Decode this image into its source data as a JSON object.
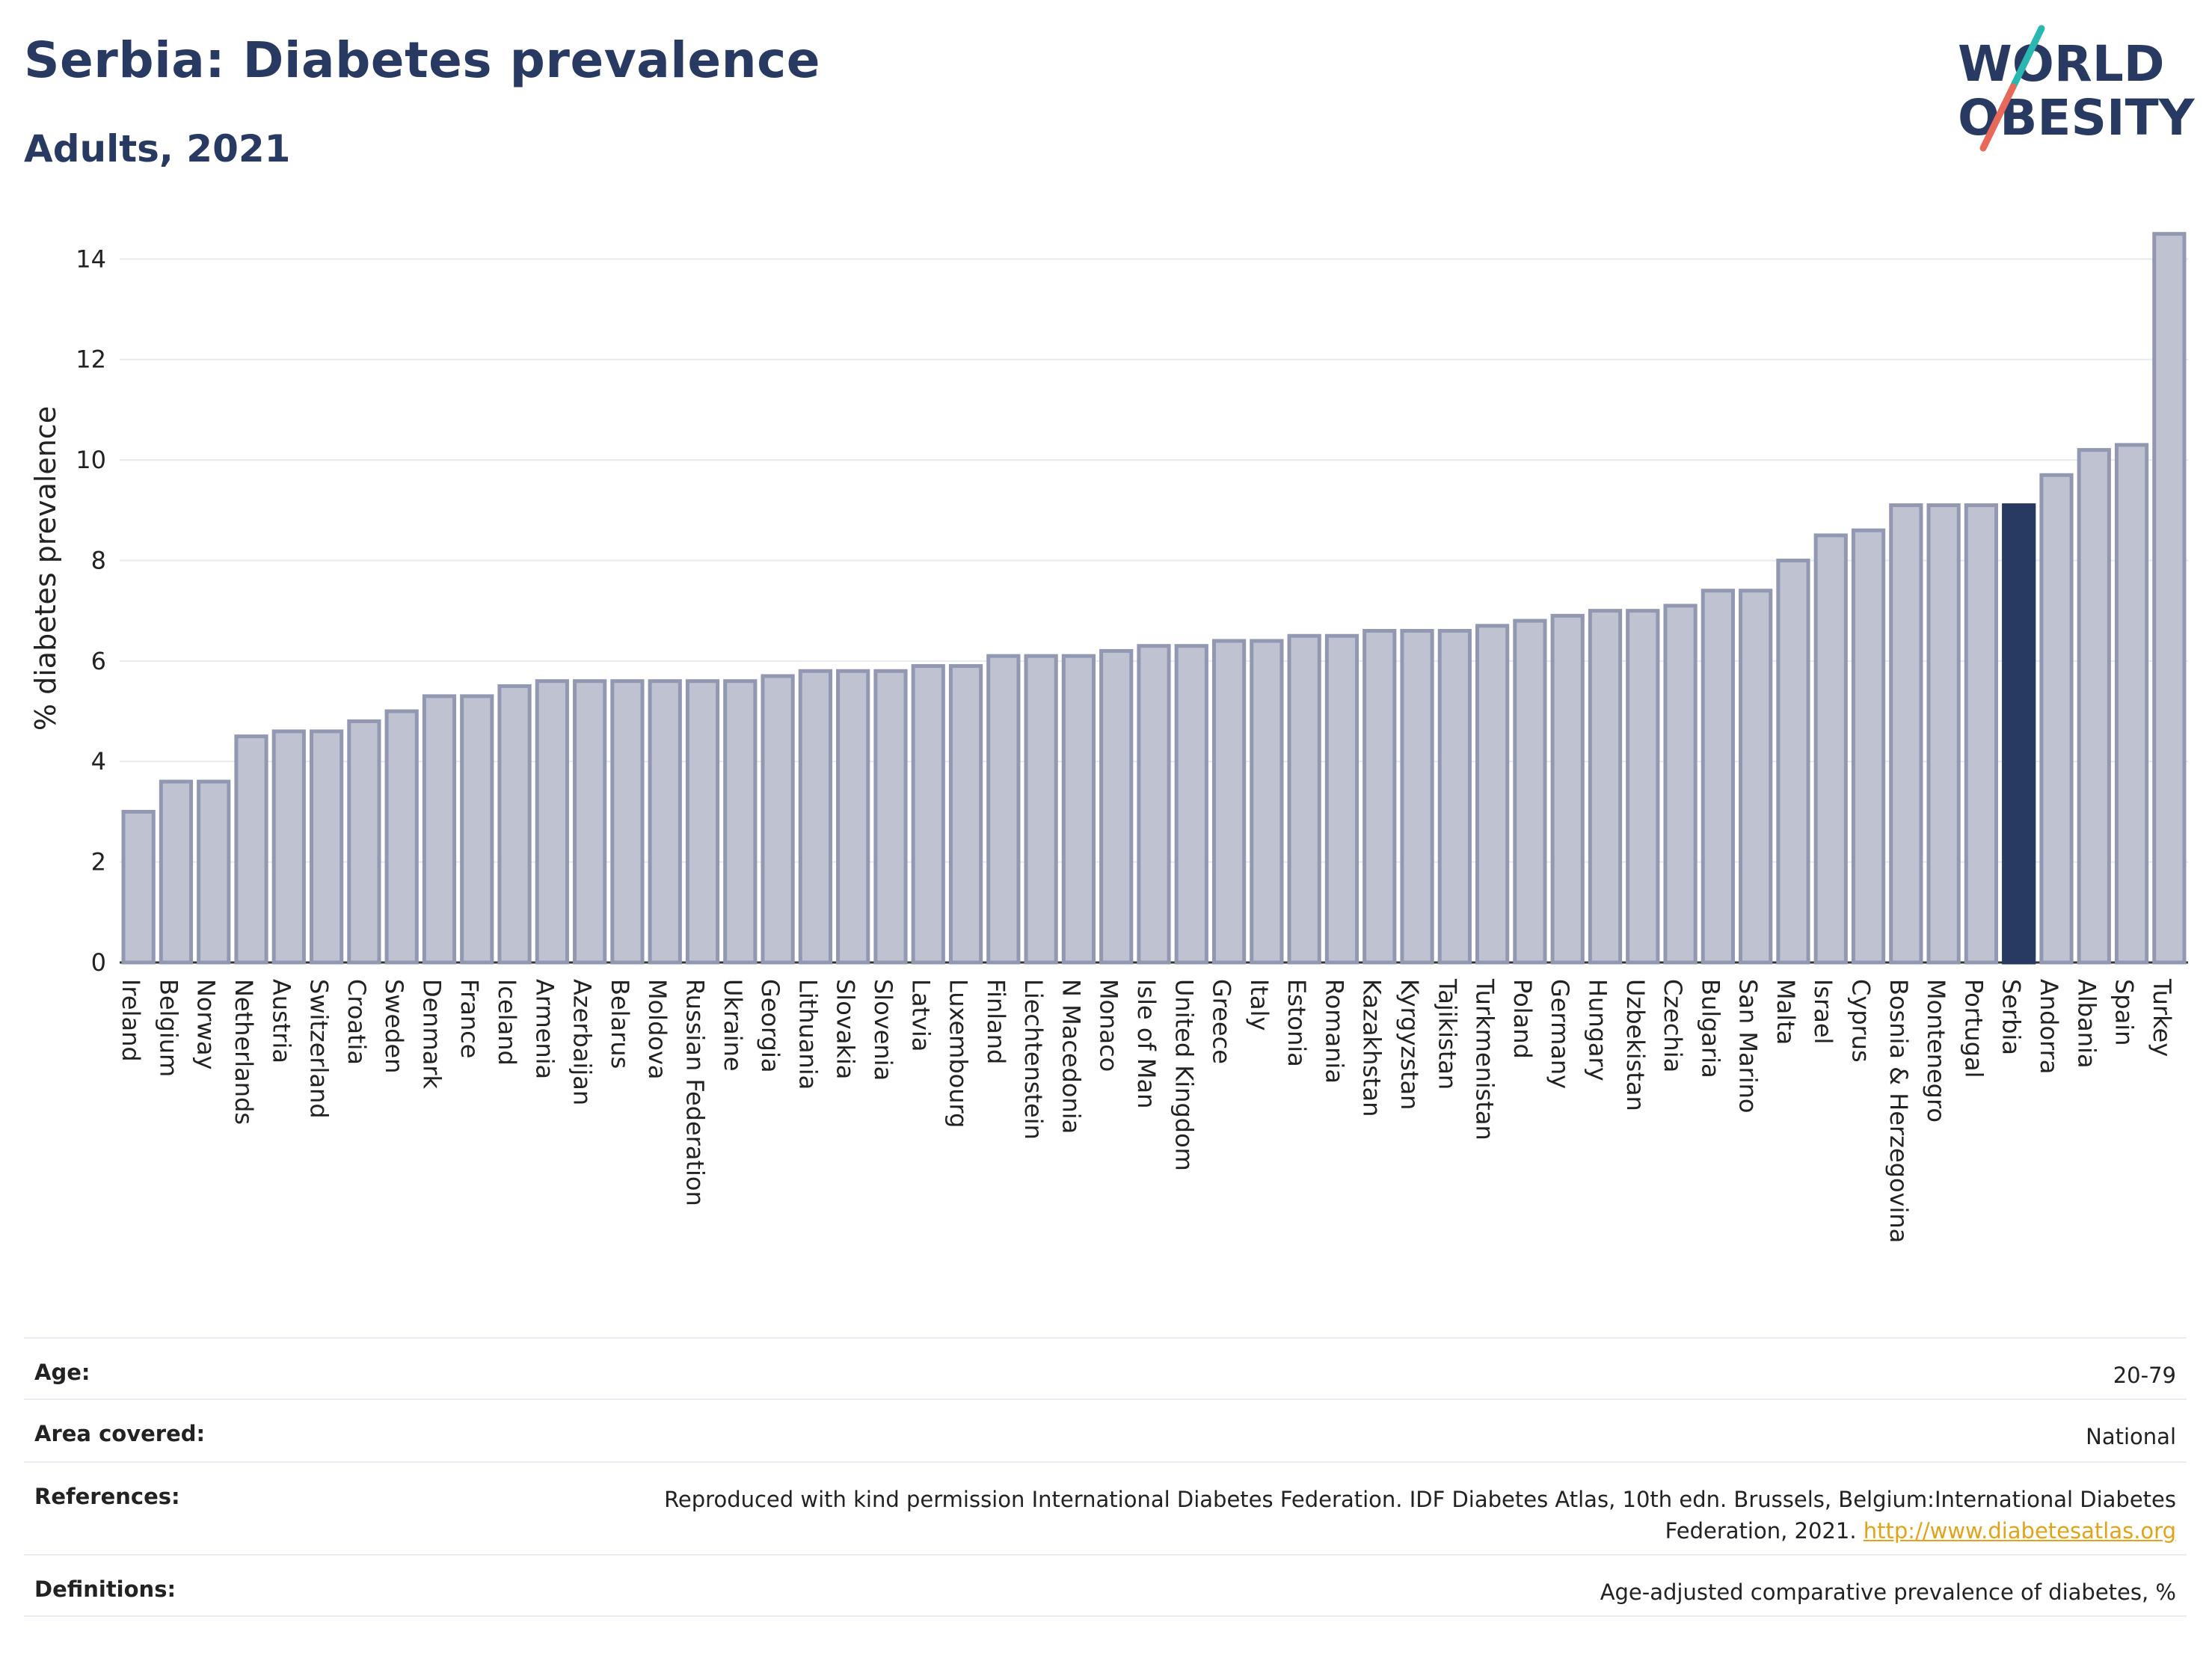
{
  "header": {
    "title": "Serbia: Diabetes prevalence",
    "subtitle": "Adults, 2021"
  },
  "logo": {
    "line1": "WORLD",
    "line2": "OBESITY",
    "accent_colors": [
      "#2bb7b1",
      "#e8685a"
    ],
    "text_color": "#283a62"
  },
  "colors": {
    "bar_default": "#bfc3d1",
    "bar_border": "#9298b1",
    "bar_highlight": "#283a62",
    "grid": "#e8eaf0",
    "axis": "#333333"
  },
  "chart_data": {
    "type": "bar",
    "title": "Serbia: Diabetes prevalence",
    "subtitle": "Adults, 2021",
    "xlabel": "",
    "ylabel": "% diabetes prevalence",
    "ylim": [
      0,
      14.6
    ],
    "yticks": [
      0,
      2,
      4,
      6,
      8,
      10,
      12,
      14
    ],
    "grid": true,
    "highlight": "Serbia",
    "categories": [
      "Ireland",
      "Belgium",
      "Norway",
      "Netherlands",
      "Austria",
      "Switzerland",
      "Croatia",
      "Sweden",
      "Denmark",
      "France",
      "Iceland",
      "Armenia",
      "Azerbaijan",
      "Belarus",
      "Moldova",
      "Russian Federation",
      "Ukraine",
      "Georgia",
      "Lithuania",
      "Slovakia",
      "Slovenia",
      "Latvia",
      "Luxembourg",
      "Finland",
      "Liechtenstein",
      "N Macedonia",
      "Monaco",
      "Isle of Man",
      "United Kingdom",
      "Greece",
      "Italy",
      "Estonia",
      "Romania",
      "Kazakhstan",
      "Kyrgyzstan",
      "Tajikistan",
      "Turkmenistan",
      "Poland",
      "Germany",
      "Hungary",
      "Uzbekistan",
      "Czechia",
      "Bulgaria",
      "San Marino",
      "Malta",
      "Israel",
      "Cyprus",
      "Bosnia & Herzegovina",
      "Montenegro",
      "Portugal",
      "Serbia",
      "Andorra",
      "Albania",
      "Spain",
      "Turkey"
    ],
    "values": [
      3.0,
      3.6,
      3.6,
      4.5,
      4.6,
      4.6,
      4.8,
      5.0,
      5.3,
      5.3,
      5.5,
      5.6,
      5.6,
      5.6,
      5.6,
      5.6,
      5.6,
      5.7,
      5.8,
      5.8,
      5.8,
      5.9,
      5.9,
      6.1,
      6.1,
      6.1,
      6.2,
      6.3,
      6.3,
      6.4,
      6.4,
      6.5,
      6.5,
      6.6,
      6.6,
      6.6,
      6.7,
      6.8,
      6.9,
      7.0,
      7.0,
      7.1,
      7.4,
      7.4,
      8.0,
      8.5,
      8.6,
      9.1,
      9.1,
      9.1,
      9.1,
      9.7,
      10.2,
      10.3,
      14.5
    ]
  },
  "meta": {
    "rows": [
      {
        "key": "Age:",
        "value": "20-79"
      },
      {
        "key": "Area covered:",
        "value": "National"
      },
      {
        "key": "References:",
        "value": "Reproduced with kind permission International Diabetes Federation.  IDF Diabetes Atlas, 10th edn. Brussels, Belgium:International Diabetes Federation, 2021.",
        "link": "http://www.diabetesatlas.org"
      },
      {
        "key": "Definitions:",
        "value": "Age-adjusted comparative prevalence of diabetes, %"
      }
    ]
  }
}
